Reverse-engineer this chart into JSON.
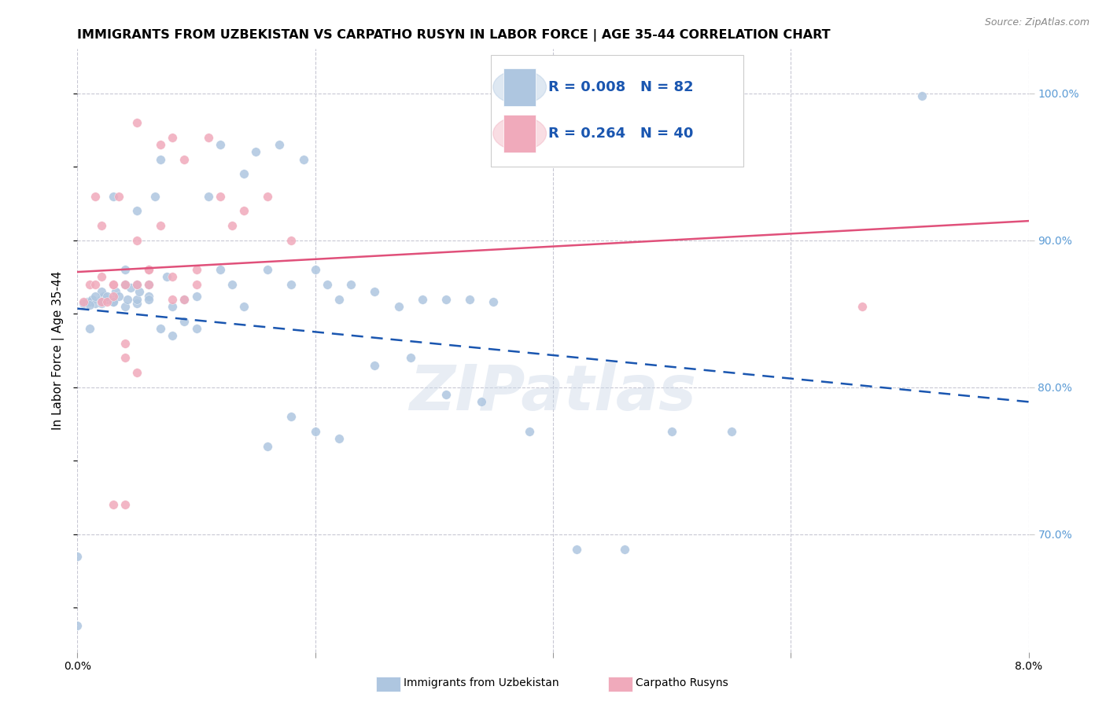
{
  "title": "IMMIGRANTS FROM UZBEKISTAN VS CARPATHO RUSYN IN LABOR FORCE | AGE 35-44 CORRELATION CHART",
  "source": "Source: ZipAtlas.com",
  "ylabel": "In Labor Force | Age 35-44",
  "xlim": [
    0.0,
    0.08
  ],
  "ylim": [
    0.62,
    1.03
  ],
  "yticks": [
    0.7,
    0.8,
    0.9,
    1.0
  ],
  "uzbekistan_color": "#aec6e0",
  "uzbekistan_edge": "#7aaac8",
  "carpatho_color": "#f0aabb",
  "carpatho_edge": "#d87090",
  "uzbekistan_line_color": "#1a56b0",
  "carpatho_line_color": "#e0507a",
  "uzbekistan_R": 0.008,
  "uzbekistan_N": 82,
  "carpatho_R": 0.264,
  "carpatho_N": 40,
  "watermark": "ZIPatlas",
  "grid_color": "#c8c8d4",
  "title_fontsize": 11.5,
  "axis_label_fontsize": 11,
  "tick_fontsize": 10,
  "legend_fontsize": 13,
  "tick_color": "#5b9bd5",
  "uzbekistan_x": [
    0.0008,
    0.001,
    0.0012,
    0.0015,
    0.002,
    0.002,
    0.0022,
    0.0025,
    0.003,
    0.003,
    0.0032,
    0.0035,
    0.004,
    0.004,
    0.0042,
    0.0045,
    0.005,
    0.005,
    0.0052,
    0.006,
    0.006,
    0.0065,
    0.007,
    0.0075,
    0.008,
    0.009,
    0.01,
    0.011,
    0.012,
    0.013,
    0.014,
    0.015,
    0.016,
    0.017,
    0.018,
    0.019,
    0.02,
    0.021,
    0.022,
    0.023,
    0.025,
    0.027,
    0.029,
    0.031,
    0.033,
    0.001,
    0.002,
    0.003,
    0.004,
    0.005,
    0.006,
    0.007,
    0.008,
    0.009,
    0.01,
    0.012,
    0.014,
    0.016,
    0.018,
    0.02,
    0.022,
    0.025,
    0.028,
    0.031,
    0.034,
    0.038,
    0.042,
    0.046,
    0.05,
    0.055,
    0.0005,
    0.001,
    0.0015,
    0.002,
    0.0025,
    0.003,
    0.004,
    0.005,
    0.071,
    0.0,
    0.0,
    0.035
  ],
  "uzbekistan_y": [
    0.858,
    0.858,
    0.86,
    0.857,
    0.86,
    0.857,
    0.862,
    0.86,
    0.86,
    0.858,
    0.865,
    0.862,
    0.87,
    0.855,
    0.86,
    0.868,
    0.857,
    0.86,
    0.865,
    0.862,
    0.87,
    0.93,
    0.955,
    0.875,
    0.855,
    0.86,
    0.862,
    0.93,
    0.965,
    0.87,
    0.945,
    0.96,
    0.88,
    0.965,
    0.87,
    0.955,
    0.88,
    0.87,
    0.86,
    0.87,
    0.865,
    0.855,
    0.86,
    0.86,
    0.86,
    0.84,
    0.865,
    0.858,
    0.88,
    0.87,
    0.86,
    0.84,
    0.835,
    0.845,
    0.84,
    0.88,
    0.855,
    0.76,
    0.78,
    0.77,
    0.765,
    0.815,
    0.82,
    0.795,
    0.79,
    0.77,
    0.69,
    0.69,
    0.77,
    0.77,
    0.857,
    0.856,
    0.862,
    0.858,
    0.862,
    0.93,
    0.87,
    0.92,
    0.998,
    0.685,
    0.638,
    0.858
  ],
  "carpatho_x": [
    0.0005,
    0.001,
    0.0015,
    0.002,
    0.0025,
    0.003,
    0.0035,
    0.004,
    0.005,
    0.006,
    0.007,
    0.008,
    0.009,
    0.01,
    0.011,
    0.012,
    0.013,
    0.014,
    0.016,
    0.018,
    0.003,
    0.004,
    0.005,
    0.006,
    0.008,
    0.0015,
    0.002,
    0.003,
    0.004,
    0.005,
    0.006,
    0.007,
    0.008,
    0.009,
    0.01,
    0.002,
    0.003,
    0.004,
    0.005,
    0.066
  ],
  "carpatho_y": [
    0.858,
    0.87,
    0.93,
    0.858,
    0.858,
    0.862,
    0.93,
    0.87,
    0.9,
    0.88,
    0.965,
    0.86,
    0.955,
    0.88,
    0.97,
    0.93,
    0.91,
    0.92,
    0.93,
    0.9,
    0.87,
    0.82,
    0.98,
    0.87,
    0.97,
    0.87,
    0.91,
    0.87,
    0.83,
    0.81,
    0.88,
    0.91,
    0.875,
    0.86,
    0.87,
    0.875,
    0.72,
    0.72,
    0.87,
    0.855
  ]
}
